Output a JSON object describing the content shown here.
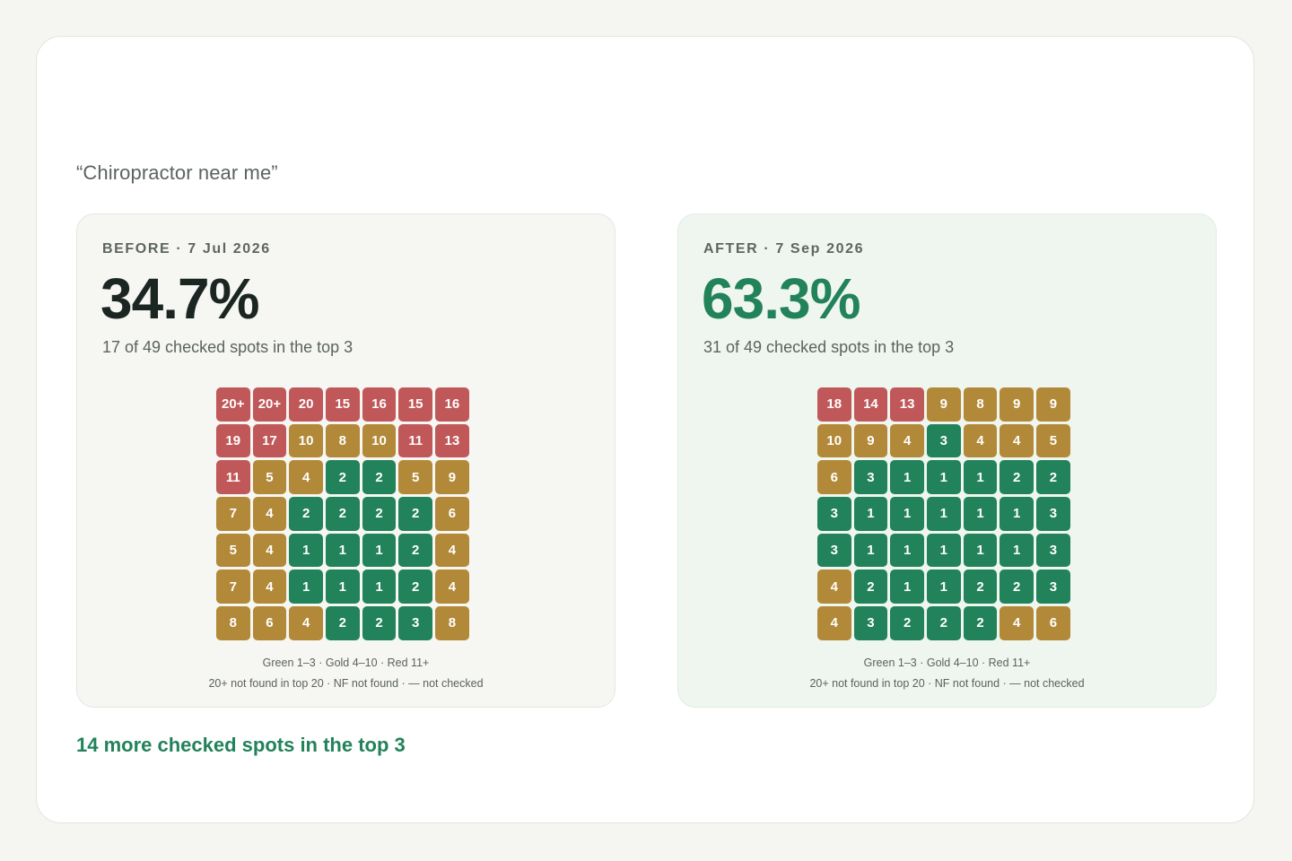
{
  "query": "“Chiropractor near me”",
  "colors": {
    "green": "#22825a",
    "gold": "#b28938",
    "red": "#c0585a",
    "text_muted": "#5b6360"
  },
  "before": {
    "label": "BEFORE · 7 Jul 2026",
    "value": "34.7%",
    "subtitle": "17 of 49 checked spots in the top 3",
    "grid": [
      [
        "20+",
        "20+",
        "20",
        "15",
        "16",
        "15",
        "16"
      ],
      [
        "19",
        "17",
        "10",
        "8",
        "10",
        "11",
        "13"
      ],
      [
        "11",
        "5",
        "4",
        "2",
        "2",
        "5",
        "9"
      ],
      [
        "7",
        "4",
        "2",
        "2",
        "2",
        "2",
        "6"
      ],
      [
        "5",
        "4",
        "1",
        "1",
        "1",
        "2",
        "4"
      ],
      [
        "7",
        "4",
        "1",
        "1",
        "1",
        "2",
        "4"
      ],
      [
        "8",
        "6",
        "4",
        "2",
        "2",
        "3",
        "8"
      ]
    ],
    "legend_line1": "Green 1–3 · Gold 4–10 · Red 11+",
    "legend_line2": "20+ not found in top 20 · NF not found · — not checked"
  },
  "after": {
    "label": "AFTER · 7 Sep 2026",
    "value": "63.3%",
    "subtitle": "31 of 49 checked spots in the top 3",
    "grid": [
      [
        "18",
        "14",
        "13",
        "9",
        "8",
        "9",
        "9"
      ],
      [
        "10",
        "9",
        "4",
        "3",
        "4",
        "4",
        "5"
      ],
      [
        "6",
        "3",
        "1",
        "1",
        "1",
        "2",
        "2"
      ],
      [
        "3",
        "1",
        "1",
        "1",
        "1",
        "1",
        "3"
      ],
      [
        "3",
        "1",
        "1",
        "1",
        "1",
        "1",
        "3"
      ],
      [
        "4",
        "2",
        "1",
        "1",
        "2",
        "2",
        "3"
      ],
      [
        "4",
        "3",
        "2",
        "2",
        "2",
        "4",
        "6"
      ]
    ],
    "legend_line1": "Green 1–3 · Gold 4–10 · Red 11+",
    "legend_line2": "20+ not found in top 20 · NF not found · — not checked"
  },
  "summary": "14 more checked spots in the top 3"
}
